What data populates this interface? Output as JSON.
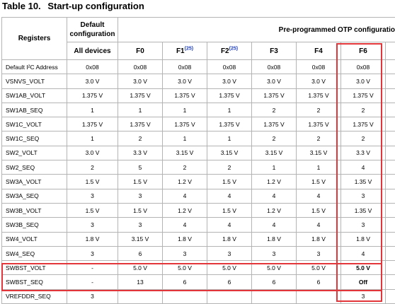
{
  "caption": {
    "number": "Table 10.",
    "title": "Start-up configuration"
  },
  "header": {
    "registers": "Registers",
    "default_config": "Default configuration",
    "otp_config": "Pre-programmed OTP configuration",
    "all_devices": "All devices",
    "columns": [
      {
        "label": "F0",
        "ref": ""
      },
      {
        "label": "F1",
        "ref": "(25)"
      },
      {
        "label": "F2",
        "ref": "(25)"
      },
      {
        "label": "F3",
        "ref": ""
      },
      {
        "label": "F4",
        "ref": ""
      },
      {
        "label": "F6",
        "ref": ""
      }
    ]
  },
  "rows": [
    {
      "name": "Default I²C Address",
      "default": "0x08",
      "values": [
        "0x08",
        "0x08",
        "0x08",
        "0x08",
        "0x08",
        "0x08"
      ]
    },
    {
      "name": "VSNVS_VOLT",
      "default": "3.0 V",
      "values": [
        "3.0 V",
        "3.0 V",
        "3.0 V",
        "3.0 V",
        "3.0 V",
        "3.0 V"
      ]
    },
    {
      "name": "SW1AB_VOLT",
      "default": "1.375 V",
      "values": [
        "1.375 V",
        "1.375 V",
        "1.375 V",
        "1.375 V",
        "1.375 V",
        "1.375 V"
      ]
    },
    {
      "name": "SW1AB_SEQ",
      "default": "1",
      "values": [
        "1",
        "1",
        "1",
        "2",
        "2",
        "2"
      ]
    },
    {
      "name": "SW1C_VOLT",
      "default": "1.375 V",
      "values": [
        "1.375 V",
        "1.375 V",
        "1.375 V",
        "1.375 V",
        "1.375 V",
        "1.375 V"
      ]
    },
    {
      "name": "SW1C_SEQ",
      "default": "1",
      "values": [
        "2",
        "1",
        "1",
        "2",
        "2",
        "2"
      ]
    },
    {
      "name": "SW2_VOLT",
      "default": "3.0 V",
      "values": [
        "3.3 V",
        "3.15 V",
        "3.15 V",
        "3.15 V",
        "3.15 V",
        "3.3 V"
      ]
    },
    {
      "name": "SW2_SEQ",
      "default": "2",
      "values": [
        "5",
        "2",
        "2",
        "1",
        "1",
        "4"
      ]
    },
    {
      "name": "SW3A_VOLT",
      "default": "1.5 V",
      "values": [
        "1.5 V",
        "1.2 V",
        "1.5 V",
        "1.2 V",
        "1.5 V",
        "1.35 V"
      ]
    },
    {
      "name": "SW3A_SEQ",
      "default": "3",
      "values": [
        "3",
        "4",
        "4",
        "4",
        "4",
        "3"
      ]
    },
    {
      "name": "SW3B_VOLT",
      "default": "1.5 V",
      "values": [
        "1.5 V",
        "1.2 V",
        "1.5 V",
        "1.2 V",
        "1.5 V",
        "1.35 V"
      ]
    },
    {
      "name": "SW3B_SEQ",
      "default": "3",
      "values": [
        "3",
        "4",
        "4",
        "4",
        "4",
        "3"
      ]
    },
    {
      "name": "SW4_VOLT",
      "default": "1.8 V",
      "values": [
        "3.15 V",
        "1.8 V",
        "1.8 V",
        "1.8 V",
        "1.8 V",
        "1.8 V"
      ]
    },
    {
      "name": "SW4_SEQ",
      "default": "3",
      "values": [
        "6",
        "3",
        "3",
        "3",
        "3",
        "4"
      ]
    },
    {
      "name": "SWBST_VOLT",
      "default": "-",
      "values": [
        "5.0 V",
        "5.0 V",
        "5.0 V",
        "5.0 V",
        "5.0 V",
        "5.0 V"
      ]
    },
    {
      "name": "SWBST_SEQ",
      "default": "-",
      "values": [
        "13",
        "6",
        "6",
        "6",
        "6",
        "Off"
      ]
    },
    {
      "name": "VREFDDR_SEQ",
      "default": "3",
      "values": [
        "",
        "",
        "",
        "",
        "",
        "3"
      ]
    }
  ],
  "bold_cells": [
    {
      "row": 14,
      "col": 5
    },
    {
      "row": 15,
      "col": 5
    }
  ],
  "highlight_color": "#e3363b"
}
